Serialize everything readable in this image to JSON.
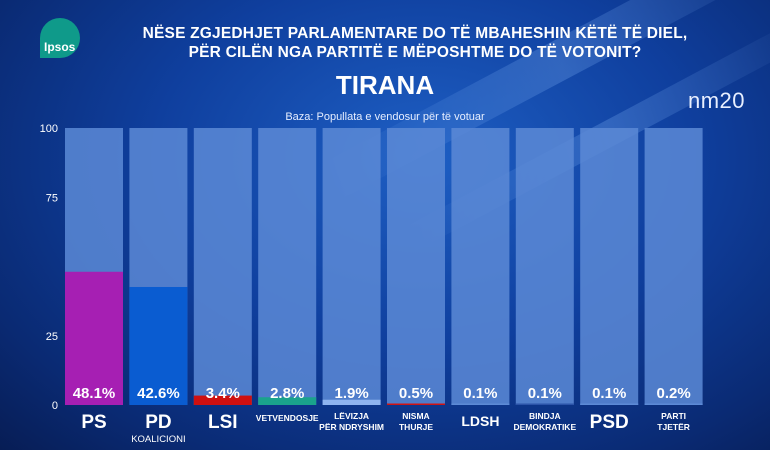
{
  "header": {
    "logo_text": "Ipsos",
    "question_line1": "NËSE ZGJEDHJET PARLAMENTARE DO TË MBAHESHIN KËTË TË DIEL,",
    "question_line2": "PËR CILËN NGA PARTITË E MËPOSHTME DO TË VOTONIT?",
    "city": "TIRANA",
    "base": "Baza: Popullata e vendosur për të votuar",
    "channel": "nm20"
  },
  "colors": {
    "track": "#5c8ad6",
    "PS": "#a61fb3",
    "PD": "#0a5cd1",
    "LSI": "#cf1010",
    "VETVENDOSJE": "#1aa38c",
    "LEVIZJA": "#8fb4f0",
    "NISMA": "#d01212",
    "LDSH": "#5c8ad6",
    "BINDJA": "#2b53a8",
    "PSD": "#5c8ad6",
    "PARTI": "#5c8ad6"
  },
  "chart_data": {
    "type": "bar",
    "title": "TIRANA",
    "subtitle": "Baza: Popullata e vendosur për të votuar",
    "ylim": [
      0,
      100
    ],
    "yticks": [
      0,
      25,
      75,
      100
    ],
    "categories": [
      {
        "key": "PS",
        "label": "PS",
        "sub": "",
        "style": "big"
      },
      {
        "key": "PD",
        "label": "PD",
        "sub": "KOALICIONI",
        "style": "big"
      },
      {
        "key": "LSI",
        "label": "LSI",
        "sub": "",
        "style": "big"
      },
      {
        "key": "VETVENDOSJE",
        "label": "VETVENDOSJE",
        "sub": "",
        "style": "small"
      },
      {
        "key": "LEVIZJA",
        "label": "LËVIZJA",
        "sub": "PËR NDRYSHIM",
        "style": "small"
      },
      {
        "key": "NISMA",
        "label": "NISMA",
        "sub": "THURJE",
        "style": "small"
      },
      {
        "key": "LDSH",
        "label": "LDSH",
        "sub": "",
        "style": "medium"
      },
      {
        "key": "BINDJA",
        "label": "BINDJA",
        "sub": "DEMOKRATIKE",
        "style": "small"
      },
      {
        "key": "PSD",
        "label": "PSD",
        "sub": "",
        "style": "big"
      },
      {
        "key": "PARTI",
        "label": "PARTI",
        "sub": "TJETËR",
        "style": "small"
      }
    ],
    "values": [
      48.1,
      42.6,
      3.4,
      2.8,
      1.9,
      0.5,
      0.1,
      0.1,
      0.1,
      0.2
    ],
    "value_labels": [
      "48.1%",
      "42.6%",
      "3.4%",
      "2.8%",
      "1.9%",
      "0.5%",
      "0.1%",
      "0.1%",
      "0.1%",
      "0.2%"
    ]
  }
}
